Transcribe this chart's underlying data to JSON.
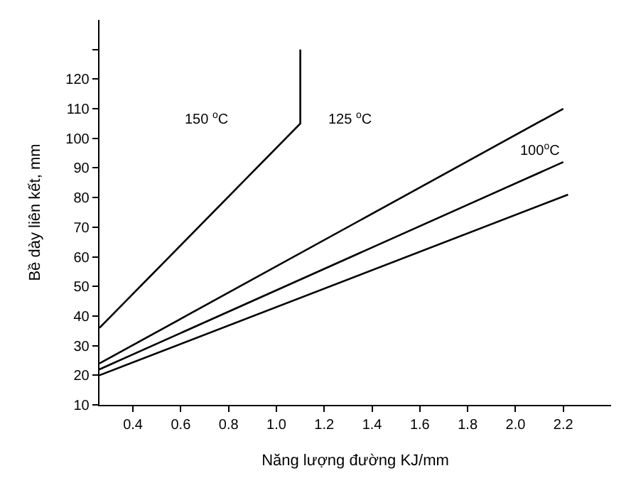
{
  "chart_data": {
    "type": "line",
    "xlabel": "Năng lượng đường KJ/mm",
    "ylabel": "Bề dày liên kết, mm",
    "series": [
      {
        "color": "#000000",
        "x": [
          0.26,
          1.1,
          1.1
        ],
        "values": [
          36,
          105,
          130
        ]
      },
      {
        "color": "#000000",
        "x": [
          0.26,
          2.2
        ],
        "values": [
          24,
          110
        ]
      },
      {
        "color": "#000000",
        "x": [
          0.26,
          2.2
        ],
        "values": [
          22,
          92
        ]
      },
      {
        "color": "#000000",
        "x": [
          0.26,
          2.22
        ],
        "values": [
          20,
          81
        ]
      }
    ],
    "annotations": [
      "150 $^{o}$C",
      "125 $^{o}$C",
      "100$^{o}$C"
    ],
    "xlim": [
      0.26,
      2.4
    ],
    "ylim": [
      10,
      140
    ],
    "xticks": [
      0.4,
      0.6,
      0.8,
      {
        "value": 1,
        "label": "1.0"
      },
      1.2,
      1.4,
      1.6,
      1.8,
      {
        "value": 2,
        "label": "2.0"
      },
      2.2
    ],
    "yticks": [
      10,
      20,
      30,
      40,
      50,
      60,
      70,
      80,
      90,
      100,
      110,
      120,
      {
        "value": 130,
        "label": null
      }
    ],
    "grid": false,
    "marker": "none",
    "line_style": "solid"
  }
}
